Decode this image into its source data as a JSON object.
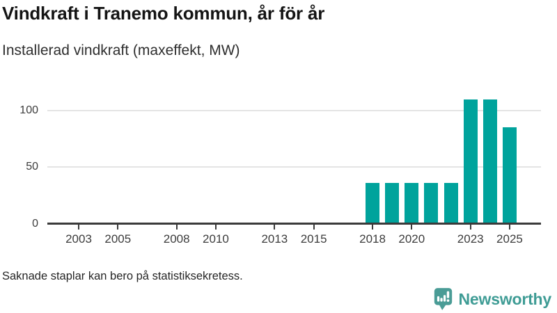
{
  "header": {
    "title": "Vindkraft i Tranemo kommun, år för år",
    "subtitle": "Installerad vindkraft (maxeffekt, MW)"
  },
  "chart_data": {
    "type": "bar",
    "title": "Vindkraft i Tranemo kommun, år för år",
    "subtitle": "Installerad vindkraft (maxeffekt, MW)",
    "ylabel": "Installerad vindkraft (maxeffekt, MW)",
    "xlabel": "",
    "categories": [
      2002,
      2003,
      2004,
      2005,
      2006,
      2007,
      2008,
      2009,
      2010,
      2011,
      2012,
      2013,
      2014,
      2015,
      2016,
      2017,
      2018,
      2019,
      2020,
      2021,
      2022,
      2023,
      2024,
      2025
    ],
    "values": [
      null,
      null,
      null,
      null,
      null,
      null,
      null,
      null,
      null,
      null,
      null,
      null,
      null,
      null,
      null,
      null,
      36,
      36,
      36,
      36,
      36,
      110,
      110,
      85
    ],
    "x_tick_labels": [
      "2003",
      "2005",
      "2008",
      "2010",
      "2013",
      "2015",
      "2018",
      "2020",
      "2023",
      "2025"
    ],
    "y_ticks": [
      0,
      50,
      100
    ],
    "xlim": [
      2001.4,
      2026.6
    ],
    "ylim": [
      0,
      114.6
    ],
    "grid": "horizontal-y",
    "legend": "none",
    "bar_color": "#00a39c",
    "missing_data_note": "Saknade staplar kan bero på statistiksekretess."
  },
  "footer": {
    "note": "Saknade staplar kan bero på statistiksekretess.",
    "brand": "Newsworthy"
  },
  "colors": {
    "bar": "#00a39c",
    "brand_teal": "#3f9c95",
    "icon_teal": "#4a9c96",
    "grid": "#e4e4e4",
    "axis": "#3a3a3a"
  }
}
